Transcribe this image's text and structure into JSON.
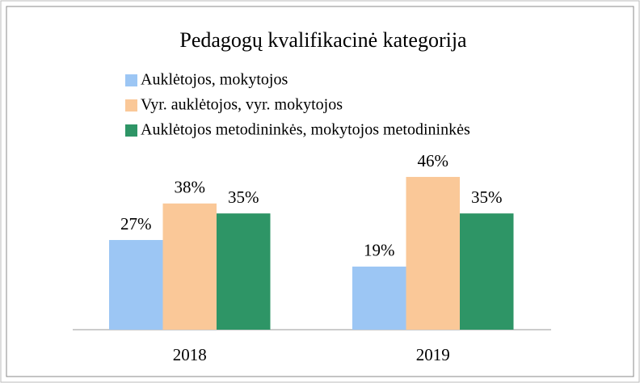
{
  "chart_data": {
    "type": "bar",
    "title": "Pedagogų kvalifikacinė kategorija",
    "categories": [
      "2018",
      "2019"
    ],
    "series": [
      {
        "name": "Auklėtojos, mokytojos",
        "color": "#9cc6f4",
        "values": [
          27,
          19
        ],
        "value_labels": [
          "27%",
          "19%"
        ]
      },
      {
        "name": "Vyr. auklėtojos, vyr. mokytojos",
        "color": "#fac898",
        "values": [
          38,
          46
        ],
        "value_labels": [
          "38%",
          "46%"
        ]
      },
      {
        "name": "Auklėtojos metodininkės, mokytojos metodininkės",
        "color": "#2e9566",
        "values": [
          35,
          35
        ],
        "value_labels": [
          "35%",
          "35%"
        ]
      }
    ]
  }
}
